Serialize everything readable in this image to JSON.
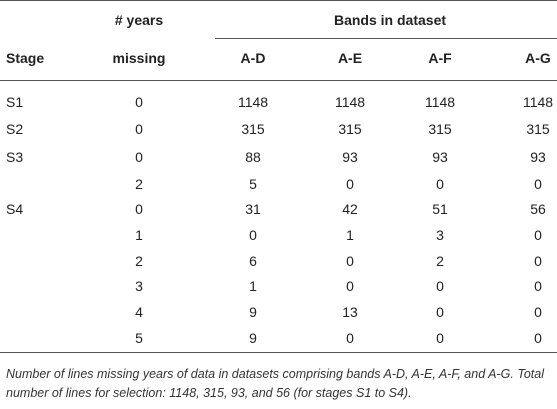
{
  "table": {
    "header": {
      "years_top": "# years",
      "group": "Bands in dataset",
      "stage": "Stage",
      "years_bottom": "missing",
      "bands": [
        "A-D",
        "A-E",
        "A-F",
        "A-G"
      ]
    },
    "rows": [
      [
        "S1",
        0,
        1148,
        1148,
        1148,
        1148
      ],
      [
        "S2",
        0,
        315,
        315,
        315,
        315
      ],
      [
        "S3",
        0,
        88,
        93,
        93,
        93
      ],
      [
        null,
        2,
        5,
        0,
        0,
        0
      ],
      [
        "S4",
        0,
        31,
        42,
        51,
        56
      ],
      [
        null,
        1,
        0,
        1,
        3,
        0
      ],
      [
        null,
        2,
        6,
        0,
        2,
        0
      ],
      [
        null,
        3,
        1,
        0,
        0,
        0
      ],
      [
        null,
        4,
        9,
        13,
        0,
        0
      ],
      [
        null,
        5,
        9,
        0,
        0,
        0
      ]
    ],
    "caption": "Number of lines missing years of data in datasets comprising bands A-D, A-E, A-F, and A-G. Total number of lines for selection: 1148, 315, 93, and 56 (for stages S1 to S4)."
  }
}
